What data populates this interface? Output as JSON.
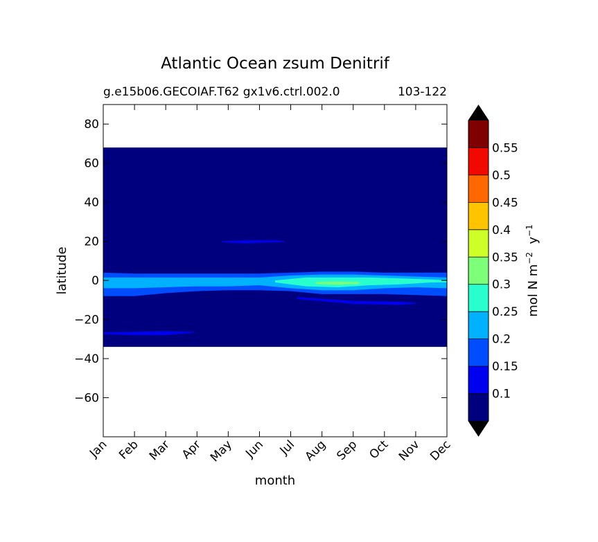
{
  "chart_data": {
    "type": "heatmap",
    "title": "Atlantic Ocean zsum Denitrif",
    "subtitle_left": "g.e15b06.GECOIAF.T62 gx1v6.ctrl.002.0",
    "subtitle_right": "103-122",
    "xlabel": "month",
    "ylabel": "latitude",
    "x_ticks": [
      "Jan",
      "Feb",
      "Mar",
      "Apr",
      "May",
      "Jun",
      "Jul",
      "Aug",
      "Sep",
      "Oct",
      "Nov",
      "Dec"
    ],
    "ylim": [
      -80,
      90
    ],
    "y_ticks": [
      80,
      60,
      40,
      20,
      0,
      -20,
      -40,
      -60
    ],
    "y_tick_labels": [
      "80",
      "60",
      "40",
      "20",
      "0",
      "−20",
      "−40",
      "−60"
    ],
    "data_lat_range": [
      -34,
      68
    ],
    "colorbar": {
      "label_main": "mol N m",
      "label_exp1": "−2",
      "label_mid": "  y",
      "label_exp2": "−1",
      "levels": [
        0.05,
        0.1,
        0.15,
        0.2,
        0.25,
        0.3,
        0.35,
        0.4,
        0.45,
        0.5,
        0.55,
        0.6
      ],
      "tick_values": [
        0.1,
        0.15,
        0.2,
        0.25,
        0.3,
        0.35,
        0.4,
        0.45,
        0.5,
        0.55
      ],
      "tick_labels": [
        "0.1",
        "0.15",
        "0.2",
        "0.25",
        "0.3",
        "0.35",
        "0.4",
        "0.45",
        "0.5",
        "0.55"
      ],
      "colors": [
        "#00007f",
        "#0000f1",
        "#004dff",
        "#00b1ff",
        "#29ffce",
        "#7dff7a",
        "#ceff29",
        "#ffc400",
        "#ff6800",
        "#f10800",
        "#7f0000"
      ],
      "extend_min_color": "#000000",
      "extend_max_color": "#000000"
    },
    "bands": [
      {
        "name": "equatorial-band-wide",
        "level": 2,
        "points": [
          [
            0,
            -8
          ],
          [
            1,
            -8
          ],
          [
            2,
            -6.5
          ],
          [
            3,
            -5.5
          ],
          [
            4,
            -5
          ],
          [
            5,
            -5
          ],
          [
            6,
            -5.5
          ],
          [
            7,
            -7
          ],
          [
            8,
            -7
          ],
          [
            9,
            -7
          ],
          [
            10,
            -7.5
          ],
          [
            11,
            -8
          ]
        ],
        "top": [
          [
            0,
            4
          ],
          [
            1,
            3.5
          ],
          [
            2,
            3.5
          ],
          [
            3,
            3.5
          ],
          [
            4,
            3.5
          ],
          [
            5,
            3.5
          ],
          [
            6,
            4
          ],
          [
            7,
            4.5
          ],
          [
            8,
            4.5
          ],
          [
            9,
            4
          ],
          [
            10,
            4
          ],
          [
            11,
            4
          ]
        ]
      },
      {
        "name": "equatorial-band-mid",
        "level": 3,
        "points": [
          [
            0,
            -4
          ],
          [
            1,
            -4
          ],
          [
            2,
            -3.5
          ],
          [
            3,
            -3
          ],
          [
            4,
            -3
          ],
          [
            5,
            -2.5
          ],
          [
            6,
            -4
          ],
          [
            7,
            -5
          ],
          [
            8,
            -5
          ],
          [
            9,
            -4
          ],
          [
            10,
            -3.5
          ],
          [
            11,
            -4
          ]
        ],
        "top": [
          [
            0,
            1.5
          ],
          [
            1,
            1.5
          ],
          [
            2,
            1.5
          ],
          [
            3,
            1.5
          ],
          [
            4,
            1.5
          ],
          [
            5,
            1.5
          ],
          [
            6,
            2.5
          ],
          [
            7,
            3
          ],
          [
            8,
            3
          ],
          [
            9,
            2.5
          ],
          [
            10,
            2
          ],
          [
            11,
            1.5
          ]
        ]
      },
      {
        "name": "equatorial-band-core",
        "level": 4,
        "points": [
          [
            5.5,
            -1
          ],
          [
            6.5,
            -3
          ],
          [
            7.5,
            -3.5
          ],
          [
            8.5,
            -2.5
          ],
          [
            9.5,
            -2
          ],
          [
            10.5,
            -1
          ],
          [
            11,
            -1
          ]
        ],
        "top": [
          [
            5.5,
            0
          ],
          [
            6.5,
            1.5
          ],
          [
            7.5,
            1.5
          ],
          [
            8.5,
            1.5
          ],
          [
            9.5,
            1
          ],
          [
            10.5,
            0.5
          ],
          [
            11,
            0
          ]
        ]
      },
      {
        "name": "equatorial-band-peak",
        "level": 5,
        "points": [
          [
            6.8,
            -1.8
          ],
          [
            7.5,
            -2.2
          ],
          [
            8.2,
            -1.8
          ]
        ],
        "top": [
          [
            6.8,
            -0.8
          ],
          [
            7.5,
            -0.6
          ],
          [
            8.2,
            -0.8
          ]
        ]
      },
      {
        "name": "south-tropical-blob",
        "level": 1,
        "points": [
          [
            6.2,
            -9.5
          ],
          [
            8,
            -12
          ],
          [
            9.5,
            -12.5
          ],
          [
            10,
            -12
          ]
        ],
        "top": [
          [
            6.2,
            -8.5
          ],
          [
            8,
            -10.5
          ],
          [
            9.5,
            -11
          ],
          [
            10,
            -11.5
          ]
        ]
      },
      {
        "name": "north-tropical-blob",
        "level": 1,
        "points": [
          [
            3.8,
            19.5
          ],
          [
            4.5,
            19
          ],
          [
            5.5,
            19.5
          ],
          [
            5.8,
            19.8
          ]
        ],
        "top": [
          [
            3.8,
            20
          ],
          [
            4.5,
            20.5
          ],
          [
            5.5,
            20.5
          ],
          [
            5.8,
            20.2
          ]
        ]
      },
      {
        "name": "southern-streak",
        "level": 1,
        "points": [
          [
            0,
            -27.5
          ],
          [
            1,
            -28
          ],
          [
            2,
            -28
          ],
          [
            2.9,
            -26.8
          ]
        ],
        "top": [
          [
            0,
            -26.5
          ],
          [
            1,
            -26.3
          ],
          [
            2,
            -26
          ],
          [
            2.9,
            -26.3
          ]
        ]
      }
    ]
  }
}
